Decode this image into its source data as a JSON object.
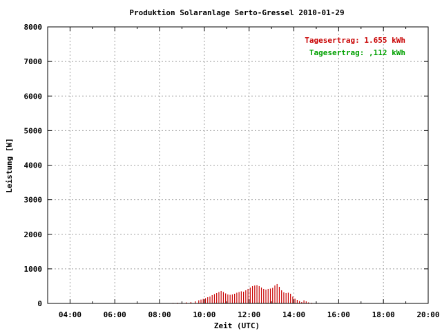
{
  "chart_data": {
    "type": "bar",
    "title": "Produktion Solaranlage Serto-Gressel 2010-01-29",
    "xlabel": "Zeit (UTC)",
    "ylabel": "Leistung [W]",
    "xlim": [
      3,
      20
    ],
    "ylim": [
      0,
      8000
    ],
    "x_ticks": [
      {
        "value": 4,
        "label": "04:00"
      },
      {
        "value": 6,
        "label": "06:00"
      },
      {
        "value": 8,
        "label": "08:00"
      },
      {
        "value": 10,
        "label": "10:00"
      },
      {
        "value": 12,
        "label": "12:00"
      },
      {
        "value": 14,
        "label": "14:00"
      },
      {
        "value": 16,
        "label": "16:00"
      },
      {
        "value": 18,
        "label": "18:00"
      },
      {
        "value": 20,
        "label": "20:00"
      }
    ],
    "y_ticks": [
      {
        "value": 0,
        "label": "0"
      },
      {
        "value": 1000,
        "label": "1000"
      },
      {
        "value": 2000,
        "label": "2000"
      },
      {
        "value": 3000,
        "label": "3000"
      },
      {
        "value": 4000,
        "label": "4000"
      },
      {
        "value": 5000,
        "label": "5000"
      },
      {
        "value": 6000,
        "label": "6000"
      },
      {
        "value": 7000,
        "label": "7000"
      },
      {
        "value": 8000,
        "label": "8000"
      }
    ],
    "grid": true,
    "legend_position": "top-right",
    "series": [
      {
        "color": "#c80000",
        "values": [
          {
            "x": 8.6,
            "y": 15
          },
          {
            "x": 8.8,
            "y": 20
          },
          {
            "x": 9.0,
            "y": 25
          },
          {
            "x": 9.2,
            "y": 30
          },
          {
            "x": 9.4,
            "y": 40
          },
          {
            "x": 9.6,
            "y": 60
          },
          {
            "x": 9.75,
            "y": 90
          },
          {
            "x": 9.85,
            "y": 110
          },
          {
            "x": 9.95,
            "y": 130
          },
          {
            "x": 10.05,
            "y": 150
          },
          {
            "x": 10.15,
            "y": 180
          },
          {
            "x": 10.25,
            "y": 200
          },
          {
            "x": 10.35,
            "y": 240
          },
          {
            "x": 10.45,
            "y": 270
          },
          {
            "x": 10.55,
            "y": 300
          },
          {
            "x": 10.65,
            "y": 330
          },
          {
            "x": 10.75,
            "y": 360
          },
          {
            "x": 10.85,
            "y": 330
          },
          {
            "x": 10.95,
            "y": 290
          },
          {
            "x": 11.05,
            "y": 260
          },
          {
            "x": 11.15,
            "y": 250
          },
          {
            "x": 11.25,
            "y": 260
          },
          {
            "x": 11.35,
            "y": 280
          },
          {
            "x": 11.45,
            "y": 310
          },
          {
            "x": 11.55,
            "y": 330
          },
          {
            "x": 11.65,
            "y": 350
          },
          {
            "x": 11.75,
            "y": 340
          },
          {
            "x": 11.85,
            "y": 380
          },
          {
            "x": 11.95,
            "y": 420
          },
          {
            "x": 12.05,
            "y": 460
          },
          {
            "x": 12.15,
            "y": 500
          },
          {
            "x": 12.25,
            "y": 520
          },
          {
            "x": 12.35,
            "y": 530
          },
          {
            "x": 12.45,
            "y": 500
          },
          {
            "x": 12.55,
            "y": 460
          },
          {
            "x": 12.65,
            "y": 420
          },
          {
            "x": 12.75,
            "y": 400
          },
          {
            "x": 12.85,
            "y": 420
          },
          {
            "x": 12.95,
            "y": 430
          },
          {
            "x": 13.05,
            "y": 450
          },
          {
            "x": 13.15,
            "y": 520
          },
          {
            "x": 13.25,
            "y": 560
          },
          {
            "x": 13.35,
            "y": 480
          },
          {
            "x": 13.45,
            "y": 380
          },
          {
            "x": 13.55,
            "y": 320
          },
          {
            "x": 13.65,
            "y": 300
          },
          {
            "x": 13.75,
            "y": 310
          },
          {
            "x": 13.85,
            "y": 280
          },
          {
            "x": 13.95,
            "y": 200
          },
          {
            "x": 14.05,
            "y": 140
          },
          {
            "x": 14.15,
            "y": 100
          },
          {
            "x": 14.25,
            "y": 70
          },
          {
            "x": 14.35,
            "y": 40
          },
          {
            "x": 14.45,
            "y": 90
          },
          {
            "x": 14.55,
            "y": 60
          },
          {
            "x": 14.65,
            "y": 30
          },
          {
            "x": 14.8,
            "y": 20
          },
          {
            "x": 15.0,
            "y": 15
          }
        ]
      },
      {
        "color": "#00a000",
        "values": [
          {
            "x": 10.4,
            "y": 10
          },
          {
            "x": 10.8,
            "y": 15
          },
          {
            "x": 11.2,
            "y": 12
          },
          {
            "x": 11.6,
            "y": 18
          },
          {
            "x": 12.0,
            "y": 20
          },
          {
            "x": 12.4,
            "y": 22
          },
          {
            "x": 12.8,
            "y": 18
          },
          {
            "x": 13.2,
            "y": 20
          },
          {
            "x": 13.6,
            "y": 12
          }
        ]
      }
    ],
    "annotations": [
      {
        "text": "Tagesertrag: 1.655 kWh",
        "color": "#c80000",
        "position": "top-right"
      },
      {
        "text": "Tagesertrag: ,112 kWh",
        "color": "#00a000",
        "position": "top-right"
      }
    ]
  }
}
